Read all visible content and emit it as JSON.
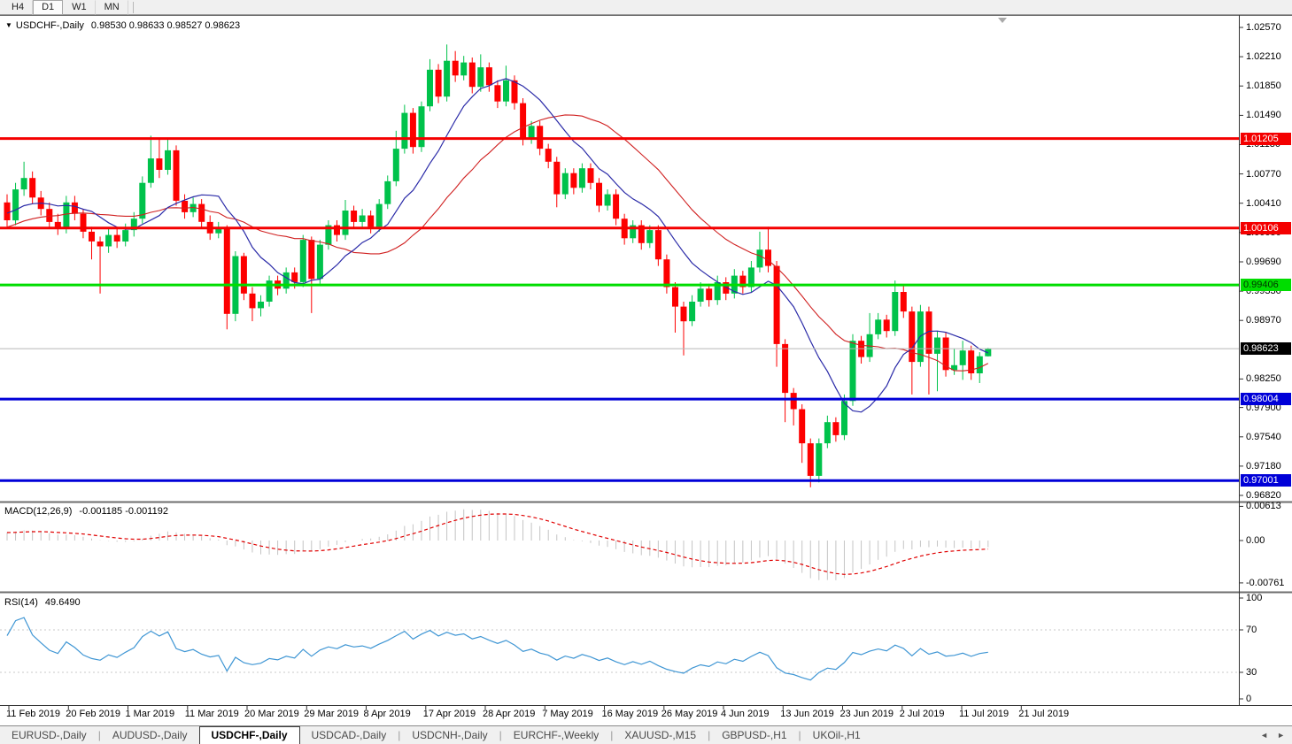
{
  "toolbar": {
    "timeframes": [
      {
        "label": "H4",
        "active": false
      },
      {
        "label": "D1",
        "active": true
      },
      {
        "label": "W1",
        "active": false
      },
      {
        "label": "MN",
        "active": false
      }
    ]
  },
  "chart": {
    "symbol_label": "USDCHF-,Daily",
    "ohlc_label": "0.98530 0.98633 0.98527 0.98623"
  },
  "macd_panel": {
    "label": "MACD(12,26,9)",
    "values": "-0.001185 -0.001192"
  },
  "rsi_panel": {
    "label": "RSI(14)",
    "value": "49.6490"
  },
  "tabs": {
    "items": [
      {
        "label": "EURUSD-,Daily",
        "active": false
      },
      {
        "label": "AUDUSD-,Daily",
        "active": false
      },
      {
        "label": "USDCHF-,Daily",
        "active": true
      },
      {
        "label": "USDCAD-,Daily",
        "active": false
      },
      {
        "label": "USDCNH-,Daily",
        "active": false
      },
      {
        "label": "EURCHF-,Weekly",
        "active": false
      },
      {
        "label": "XAUUSD-,M15",
        "active": false
      },
      {
        "label": "GBPUSD-,H1",
        "active": false
      },
      {
        "label": "UKOil-,H1",
        "active": false
      }
    ],
    "scroll_left": "◄",
    "scroll_right": "►"
  },
  "chart_data": {
    "type": "candlestick",
    "symbol": "USDCHF",
    "timeframe": "Daily",
    "current_bar": {
      "open": 0.9853,
      "high": 0.98633,
      "low": 0.98527,
      "close": 0.98623
    },
    "y_ticks": [
      "1.02570",
      "1.02210",
      "1.01850",
      "1.01490",
      "1.01130",
      "1.00770",
      "1.00410",
      "1.00050",
      "0.99690",
      "0.99330",
      "0.98970",
      "0.98250",
      "0.97900",
      "0.97540",
      "0.97180",
      "0.96820"
    ],
    "x_ticks": [
      "11 Feb 2019",
      "20 Feb 2019",
      "1 Mar 2019",
      "11 Mar 2019",
      "20 Mar 2019",
      "29 Mar 2019",
      "8 Apr 2019",
      "17 Apr 2019",
      "28 Apr 2019",
      "7 May 2019",
      "16 May 2019",
      "26 May 2019",
      "4 Jun 2019",
      "13 Jun 2019",
      "23 Jun 2019",
      "2 Jul 2019",
      "11 Jul 2019",
      "21 Jul 2019"
    ],
    "price_lines": [
      {
        "price": 1.01205,
        "label": "1.01205",
        "color": "#f40000",
        "text": "#ffffff"
      },
      {
        "price": 1.00106,
        "label": "1.00106",
        "color": "#f40000",
        "text": "#ffffff"
      },
      {
        "price": 0.99406,
        "label": "0.99406",
        "color": "#00dd00",
        "text": "#003300"
      },
      {
        "price": 0.98004,
        "label": "0.98004",
        "color": "#0000d8",
        "text": "#ffffff"
      },
      {
        "price": 0.97001,
        "label": "0.97001",
        "color": "#0000d8",
        "text": "#ffffff"
      }
    ],
    "current_price": {
      "price": 0.98623,
      "label": "0.98623",
      "color": "#000000",
      "text": "#ffffff"
    },
    "colors": {
      "bull": "#00c24b",
      "bear": "#fd0000"
    },
    "candles": [
      [
        1.0042,
        1.0052,
        1.0012,
        1.002
      ],
      [
        1.002,
        1.0066,
        1.0014,
        1.0058
      ],
      [
        1.0058,
        1.0092,
        1.005,
        1.0072
      ],
      [
        1.0072,
        1.008,
        1.004,
        1.0048
      ],
      [
        1.0048,
        1.0056,
        1.0026,
        1.0034
      ],
      [
        1.0034,
        1.0042,
        1.001,
        1.0018
      ],
      [
        1.0018,
        1.0028,
        1.0002,
        1.001
      ],
      [
        1.001,
        1.005,
        1.0004,
        1.0042
      ],
      [
        1.0042,
        1.005,
        1.002,
        1.0028
      ],
      [
        1.0028,
        1.0034,
        0.9998,
        1.0006
      ],
      [
        1.0006,
        1.0012,
        0.9972,
        0.9994
      ],
      [
        0.9994,
        1.0,
        0.993,
        0.9988
      ],
      [
        0.9988,
        1.001,
        0.998,
        1.0002
      ],
      [
        1.0002,
        1.001,
        0.9986,
        0.9994
      ],
      [
        0.9994,
        1.0016,
        0.9988,
        1.0008
      ],
      [
        1.0008,
        1.003,
        1.0,
        1.0022
      ],
      [
        1.0022,
        1.0074,
        1.0016,
        1.0066
      ],
      [
        1.0066,
        1.0124,
        1.006,
        1.0096
      ],
      [
        1.0096,
        1.012,
        1.0072,
        1.0082
      ],
      [
        1.0082,
        1.0121,
        1.0076,
        1.0106
      ],
      [
        1.0106,
        1.0112,
        1.0038,
        1.0044
      ],
      [
        1.0044,
        1.0052,
        1.0022,
        1.003
      ],
      [
        1.003,
        1.0048,
        1.0024,
        1.004
      ],
      [
        1.004,
        1.0046,
        1.001,
        1.0018
      ],
      [
        1.0018,
        1.0026,
        0.9996,
        1.0004
      ],
      [
        1.0004,
        1.0018,
        0.9998,
        1.001
      ],
      [
        1.001,
        1.0014,
        0.9886,
        0.9905
      ],
      [
        0.9905,
        0.9982,
        0.9896,
        0.9976
      ],
      [
        0.9976,
        0.998,
        0.9922,
        0.993
      ],
      [
        0.993,
        0.9938,
        0.9896,
        0.9912
      ],
      [
        0.9912,
        0.9928,
        0.9902,
        0.992
      ],
      [
        0.992,
        0.9952,
        0.9914,
        0.9946
      ],
      [
        0.9946,
        0.9952,
        0.9928,
        0.9936
      ],
      [
        0.9936,
        0.9962,
        0.993,
        0.9956
      ],
      [
        0.9956,
        0.9962,
        0.9936,
        0.9944
      ],
      [
        0.9944,
        1.0002,
        0.9938,
        0.9996
      ],
      [
        0.9996,
        1.0,
        0.9906,
        0.9948
      ],
      [
        0.9948,
        0.9996,
        0.9942,
        0.999
      ],
      [
        0.999,
        1.002,
        0.9984,
        1.0014
      ],
      [
        1.0014,
        1.002,
        0.9994,
        1.0002
      ],
      [
        1.0002,
        1.0045,
        0.9996,
        1.0032
      ],
      [
        1.0032,
        1.0038,
        1.001,
        1.0018
      ],
      [
        1.0018,
        1.0034,
        1.0012,
        1.0026
      ],
      [
        1.0026,
        1.0032,
        1.0004,
        1.0012
      ],
      [
        1.0012,
        1.0046,
        1.0006,
        1.004
      ],
      [
        1.004,
        1.0075,
        1.0034,
        1.0068
      ],
      [
        1.0068,
        1.013,
        1.0062,
        1.0108
      ],
      [
        1.0108,
        1.0162,
        1.0102,
        1.0152
      ],
      [
        1.0152,
        1.0158,
        1.0102,
        1.011
      ],
      [
        1.011,
        1.0166,
        1.0104,
        1.016
      ],
      [
        1.016,
        1.0218,
        1.0154,
        1.0205
      ],
      [
        1.0205,
        1.0212,
        1.0164,
        1.0172
      ],
      [
        1.0172,
        1.0236,
        1.0166,
        1.0216
      ],
      [
        1.0216,
        1.0228,
        1.019,
        1.0198
      ],
      [
        1.0198,
        1.0222,
        1.0192,
        1.0214
      ],
      [
        1.0214,
        1.022,
        1.0176,
        1.0184
      ],
      [
        1.0184,
        1.0224,
        1.0178,
        1.0208
      ],
      [
        1.0208,
        1.0214,
        1.0178,
        1.0186
      ],
      [
        1.0186,
        1.0192,
        1.0158,
        1.0166
      ],
      [
        1.0166,
        1.021,
        1.016,
        1.0192
      ],
      [
        1.0192,
        1.0198,
        1.0156,
        1.0164
      ],
      [
        1.0164,
        1.017,
        1.0112,
        1.012
      ],
      [
        1.012,
        1.0142,
        1.0114,
        1.0136
      ],
      [
        1.0136,
        1.0142,
        1.01,
        1.0108
      ],
      [
        1.0108,
        1.0114,
        1.0084,
        1.0092
      ],
      [
        1.0092,
        1.0098,
        1.0036,
        1.0052
      ],
      [
        1.0052,
        1.0084,
        1.0046,
        1.0078
      ],
      [
        1.0078,
        1.0084,
        1.0052,
        1.006
      ],
      [
        1.006,
        1.009,
        1.0054,
        1.0084
      ],
      [
        1.0084,
        1.009,
        1.0058,
        1.0066
      ],
      [
        1.0066,
        1.0072,
        1.003,
        1.0038
      ],
      [
        1.0038,
        1.0058,
        1.0032,
        1.0052
      ],
      [
        1.0052,
        1.0058,
        1.0014,
        1.0022
      ],
      [
        1.0022,
        1.0028,
        0.999,
        0.9998
      ],
      [
        0.9998,
        1.002,
        0.9992,
        1.0014
      ],
      [
        1.0014,
        1.002,
        0.9984,
        0.9992
      ],
      [
        0.9992,
        1.0014,
        0.9986,
        1.0008
      ],
      [
        1.0008,
        1.0014,
        0.9964,
        0.9972
      ],
      [
        0.9972,
        0.9978,
        0.993,
        0.9938
      ],
      [
        0.9938,
        0.9944,
        0.9882,
        0.9914
      ],
      [
        0.9914,
        0.992,
        0.9854,
        0.9896
      ],
      [
        0.9896,
        0.9928,
        0.989,
        0.992
      ],
      [
        0.992,
        0.9944,
        0.9914,
        0.9936
      ],
      [
        0.9936,
        0.9942,
        0.9914,
        0.9922
      ],
      [
        0.9922,
        0.9952,
        0.9916,
        0.9944
      ],
      [
        0.9944,
        0.995,
        0.9922,
        0.993
      ],
      [
        0.993,
        0.996,
        0.9924,
        0.9952
      ],
      [
        0.9952,
        0.9958,
        0.993,
        0.9938
      ],
      [
        0.9938,
        0.997,
        0.9932,
        0.9962
      ],
      [
        0.9962,
        1.0006,
        0.9956,
        0.9984
      ],
      [
        0.9984,
        1.0012,
        0.9956,
        0.9964
      ],
      [
        0.9964,
        0.997,
        0.984,
        0.9868
      ],
      [
        0.9868,
        0.9874,
        0.9772,
        0.9808
      ],
      [
        0.9808,
        0.9814,
        0.9768,
        0.9788
      ],
      [
        0.9788,
        0.9794,
        0.9722,
        0.9746
      ],
      [
        0.9746,
        0.9752,
        0.9692,
        0.9706
      ],
      [
        0.9706,
        0.9752,
        0.9698,
        0.9746
      ],
      [
        0.9746,
        0.978,
        0.974,
        0.9772
      ],
      [
        0.9772,
        0.9778,
        0.9748,
        0.9756
      ],
      [
        0.9756,
        0.9806,
        0.975,
        0.9798
      ],
      [
        0.9798,
        0.988,
        0.9792,
        0.9872
      ],
      [
        0.9872,
        0.9878,
        0.9844,
        0.9852
      ],
      [
        0.9852,
        0.9906,
        0.9846,
        0.988
      ],
      [
        0.988,
        0.9906,
        0.9874,
        0.9898
      ],
      [
        0.9898,
        0.9904,
        0.9876,
        0.9884
      ],
      [
        0.9884,
        0.9946,
        0.9878,
        0.9932
      ],
      [
        0.9932,
        0.994,
        0.99,
        0.9908
      ],
      [
        0.9908,
        0.9914,
        0.9806,
        0.9846
      ],
      [
        0.9846,
        0.9916,
        0.984,
        0.9908
      ],
      [
        0.9908,
        0.9914,
        0.9806,
        0.9856
      ],
      [
        0.9856,
        0.9884,
        0.981,
        0.9876
      ],
      [
        0.9876,
        0.9882,
        0.9828,
        0.9836
      ],
      [
        0.9836,
        0.9862,
        0.983,
        0.9842
      ],
      [
        0.9842,
        0.9872,
        0.9824,
        0.986
      ],
      [
        0.986,
        0.9866,
        0.9824,
        0.9832
      ],
      [
        0.9832,
        0.9858,
        0.982,
        0.9853
      ],
      [
        0.9853,
        0.98633,
        0.98527,
        0.98623
      ]
    ],
    "indicators": {
      "moving_averages": [
        {
          "type": "sma",
          "period": 10,
          "color": "#2b2ba8"
        },
        {
          "type": "sma",
          "period": 22,
          "color": "#d02020"
        }
      ],
      "macd": {
        "params": [
          12,
          26,
          9
        ],
        "current_macd": -0.001185,
        "current_signal": -0.001192,
        "axis_labels": [
          "0.00613",
          "0.00",
          "-0.00761"
        ],
        "axis_values": [
          0.00613,
          0,
          -0.00761
        ],
        "histogram_color": "#c4c4c4",
        "signal_color": "#e00000"
      },
      "rsi": {
        "period": 14,
        "current": 49.649,
        "axis_labels": [
          "100",
          "70",
          "30",
          "0"
        ],
        "axis_values": [
          100,
          70,
          30,
          0
        ],
        "levels": [
          70,
          30
        ],
        "color": "#3f96d4"
      }
    }
  }
}
